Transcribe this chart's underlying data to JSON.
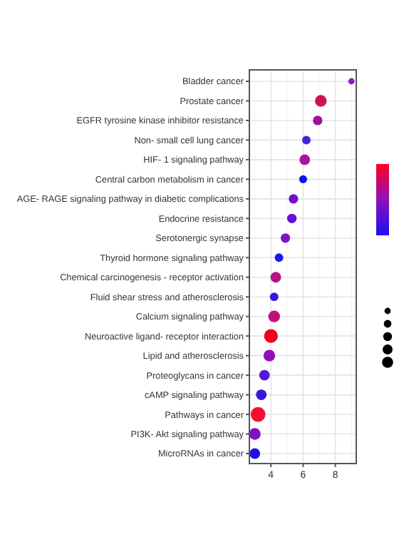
{
  "chart_data": {
    "type": "bubble",
    "orientation": "horizontal",
    "categories": [
      "Bladder cancer",
      "Prostate cancer",
      "EGFR tyrosine kinase inhibitor resistance",
      "Non- small cell lung cancer",
      "HIF- 1 signaling pathway",
      "Central carbon metabolism in cancer",
      "AGE- RAGE signaling pathway in diabetic complications",
      "Endocrine resistance",
      "Serotonergic synapse",
      "Thyroid hormone signaling pathway",
      "Chemical carcinogenesis -  receptor activation",
      "Fluid shear stress and atherosclerosis",
      "Calcium signaling pathway",
      "Neuroactive ligand- receptor interaction",
      "Lipid and atherosclerosis",
      "Proteoglycans in cancer",
      "cAMP signaling pathway",
      "Pathways in cancer",
      "PI3K- Akt signaling pathway",
      "MicroRNAs in cancer"
    ],
    "values": [
      9.0,
      7.1,
      6.9,
      6.2,
      6.1,
      6.0,
      5.4,
      5.3,
      4.9,
      4.5,
      4.3,
      4.2,
      4.2,
      4.0,
      3.9,
      3.6,
      3.4,
      3.2,
      3.0,
      3.0
    ],
    "sizes": [
      0.18,
      0.62,
      0.41,
      0.33,
      0.51,
      0.29,
      0.41,
      0.41,
      0.41,
      0.33,
      0.51,
      0.33,
      0.62,
      0.86,
      0.62,
      0.51,
      0.51,
      1,
      0.62,
      0.51
    ],
    "colors": [
      "#8a1ad0",
      "#d0105a",
      "#a010a0",
      "#4a1ee0",
      "#b010a0",
      "#1010e8",
      "#7010c8",
      "#6a10d0",
      "#7a18c8",
      "#1a1ae8",
      "#b8108a",
      "#3018e0",
      "#c0107a",
      "#f00020",
      "#9010b8",
      "#5818d8",
      "#3418e0",
      "#f01030",
      "#8010c8",
      "#2010e8"
    ],
    "xlim": [
      2.66,
      9.3
    ],
    "xticks": [
      4,
      6,
      8
    ],
    "grid": true
  }
}
